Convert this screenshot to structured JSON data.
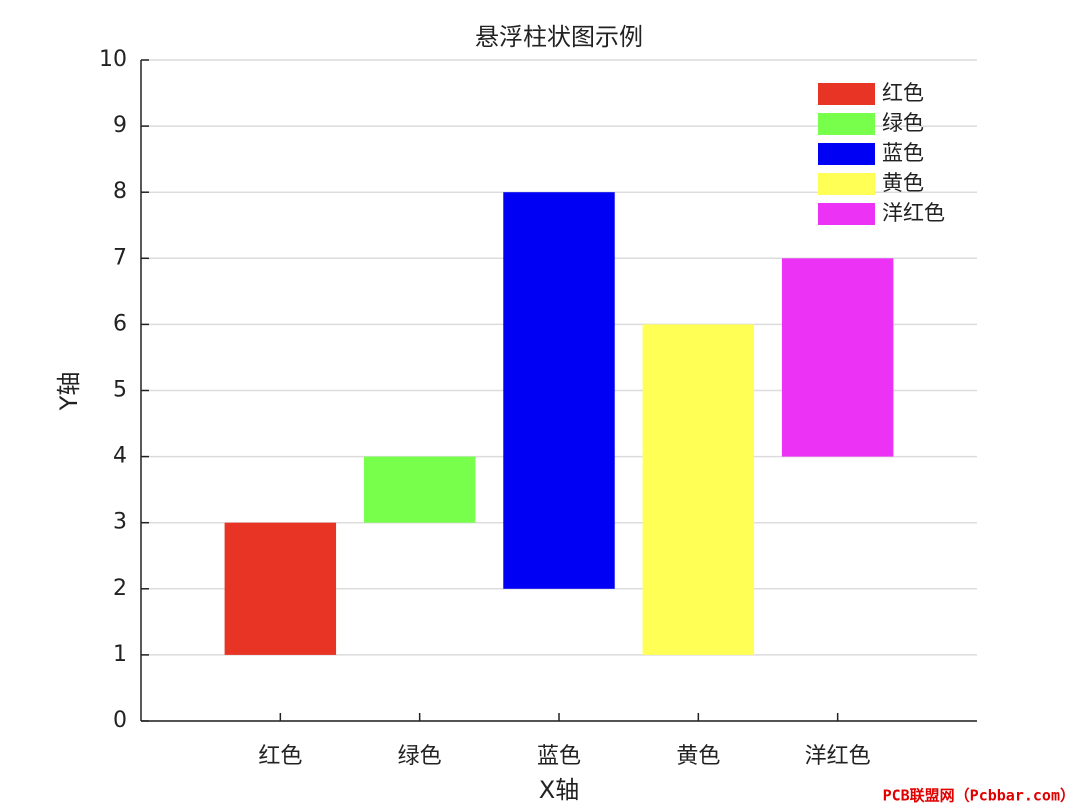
{
  "chart_data": {
    "type": "floating-bar",
    "title": "悬浮柱状图示例",
    "x_label": "X轴",
    "y_label": "Y轴",
    "categories": [
      "红色",
      "绿色",
      "蓝色",
      "黄色",
      "洋红色"
    ],
    "low": [
      1,
      3,
      2,
      1,
      4
    ],
    "high": [
      3,
      4,
      8,
      6,
      7
    ],
    "colors": [
      "#e83424",
      "#77ff4c",
      "#0000f5",
      "#ffff55",
      "#ec33f5"
    ],
    "ylim": [
      0,
      10
    ],
    "yticks": [
      0,
      1,
      2,
      3,
      4,
      5,
      6,
      7,
      8,
      9,
      10
    ],
    "grid": true,
    "legend": "upper-right",
    "watermark": "PCB联盟网（Pcbbar.com）"
  }
}
